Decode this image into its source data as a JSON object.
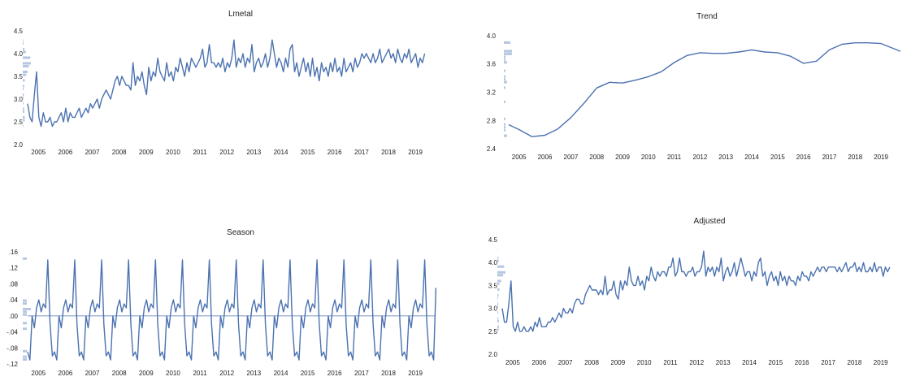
{
  "colors": {
    "series": "#4b72b0",
    "histogram": "#b5c6e0",
    "text": "#222222"
  },
  "chart_data": [
    {
      "id": "lmetal",
      "type": "line",
      "title": "Lmetal",
      "xlabel": "",
      "ylabel": "",
      "x_tick_labels": [
        "2005",
        "2006",
        "2007",
        "2008",
        "2009",
        "2010",
        "2011",
        "2012",
        "2013",
        "2014",
        "2015",
        "2016",
        "2017",
        "2018",
        "2019"
      ],
      "y_tick_labels": [
        "2.0",
        "2.5",
        "3.0",
        "3.5",
        "4.0",
        "4.5"
      ],
      "ylim": [
        2.0,
        4.5
      ],
      "xlim": [
        2004.6,
        2019.75
      ],
      "grid": false,
      "marginal_histogram": true,
      "series": [
        {
          "x_start": 2004.6,
          "x_step": 0.0833,
          "values": [
            2.9,
            2.6,
            2.5,
            3.1,
            3.6,
            2.6,
            2.4,
            2.7,
            2.5,
            2.5,
            2.6,
            2.4,
            2.5,
            2.5,
            2.6,
            2.7,
            2.5,
            2.8,
            2.5,
            2.7,
            2.6,
            2.6,
            2.7,
            2.8,
            2.6,
            2.7,
            2.8,
            2.7,
            2.9,
            2.8,
            2.9,
            3.0,
            2.8,
            3.0,
            3.1,
            3.2,
            3.1,
            3.0,
            3.2,
            3.4,
            3.5,
            3.3,
            3.5,
            3.4,
            3.3,
            3.3,
            3.2,
            3.8,
            3.3,
            3.5,
            3.4,
            3.6,
            3.3,
            3.1,
            3.7,
            3.4,
            3.6,
            3.5,
            3.9,
            3.6,
            3.5,
            3.4,
            3.8,
            3.5,
            3.6,
            3.4,
            3.7,
            3.6,
            3.9,
            3.7,
            3.5,
            3.8,
            3.6,
            3.9,
            3.8,
            3.7,
            3.8,
            3.9,
            4.1,
            3.7,
            3.8,
            4.2,
            3.8,
            3.8,
            3.7,
            3.8,
            3.7,
            3.9,
            3.6,
            3.8,
            3.7,
            3.9,
            4.3,
            3.7,
            3.9,
            3.8,
            4.0,
            3.7,
            3.9,
            3.8,
            4.2,
            3.6,
            3.8,
            3.9,
            3.7,
            3.8,
            4.0,
            3.7,
            3.9,
            4.3,
            4.0,
            3.7,
            3.9,
            3.8,
            3.6,
            3.9,
            3.7,
            4.1,
            4.2,
            3.6,
            3.8,
            3.5,
            3.7,
            3.9,
            3.6,
            3.8,
            3.5,
            3.9,
            3.5,
            3.7,
            3.4,
            3.8,
            3.6,
            3.7,
            3.5,
            3.8,
            3.6,
            3.9,
            3.6,
            3.7,
            3.5,
            3.9,
            3.6,
            3.7,
            3.8,
            3.6,
            3.9,
            3.7,
            3.8,
            4.0,
            3.9,
            4.0,
            3.9,
            3.8,
            4.0,
            3.8,
            3.9,
            4.1,
            3.8,
            3.9,
            4.0,
            4.1,
            3.9,
            4.0,
            3.8,
            4.1,
            3.9,
            3.8,
            4.0,
            3.9,
            4.1,
            3.8,
            3.9,
            4.0,
            3.7,
            3.9,
            3.8,
            4.0
          ]
        }
      ]
    },
    {
      "id": "trend",
      "type": "line",
      "title": "Trend",
      "xlabel": "",
      "ylabel": "",
      "x_tick_labels": [
        "2005",
        "2006",
        "2007",
        "2008",
        "2009",
        "2010",
        "2011",
        "2012",
        "2013",
        "2014",
        "2015",
        "2016",
        "2017",
        "2018",
        "2019"
      ],
      "y_tick_labels": [
        "2.4",
        "2.8",
        "3.2",
        "3.6",
        "4.0"
      ],
      "ylim": [
        2.4,
        4.0
      ],
      "xlim": [
        2004.6,
        2019.75
      ],
      "grid": false,
      "marginal_histogram": true,
      "series": [
        {
          "x": [
            2004.6,
            2005.0,
            2005.5,
            2006.0,
            2006.5,
            2007.0,
            2007.5,
            2008.0,
            2008.5,
            2009.0,
            2009.5,
            2010.0,
            2010.5,
            2011.0,
            2011.5,
            2012.0,
            2012.5,
            2013.0,
            2013.5,
            2014.0,
            2014.5,
            2015.0,
            2015.5,
            2016.0,
            2016.5,
            2017.0,
            2017.5,
            2018.0,
            2018.5,
            2019.0,
            2019.75
          ],
          "values": [
            2.74,
            2.67,
            2.57,
            2.59,
            2.68,
            2.84,
            3.04,
            3.26,
            3.34,
            3.33,
            3.37,
            3.42,
            3.49,
            3.62,
            3.72,
            3.76,
            3.75,
            3.75,
            3.77,
            3.8,
            3.77,
            3.76,
            3.71,
            3.61,
            3.64,
            3.8,
            3.88,
            3.9,
            3.9,
            3.89,
            3.78
          ]
        }
      ]
    },
    {
      "id": "season",
      "type": "line",
      "title": "Season",
      "xlabel": "",
      "ylabel": "",
      "x_tick_labels": [
        "2005",
        "2006",
        "2007",
        "2008",
        "2009",
        "2010",
        "2011",
        "2012",
        "2013",
        "2014",
        "2015",
        "2016",
        "2017",
        "2018",
        "2019"
      ],
      "y_tick_labels": [
        "-.12",
        "-.08",
        "-.04",
        ".00",
        ".04",
        ".08",
        ".12",
        ".16"
      ],
      "ylim": [
        -0.12,
        0.16
      ],
      "xlim": [
        2004.6,
        2019.75
      ],
      "grid": false,
      "zero_line": true,
      "marginal_histogram": true,
      "series": [
        {
          "x_start": 2004.6,
          "x_step": 0.0833,
          "pattern": [
            -0.09,
            -0.11,
            0.0,
            -0.03,
            0.02,
            0.04,
            0.01,
            0.03,
            0.02,
            0.14,
            -0.02,
            -0.1
          ],
          "last_value": 0.07
        }
      ]
    },
    {
      "id": "adjusted",
      "type": "line",
      "title": "Adjusted",
      "xlabel": "",
      "ylabel": "",
      "x_tick_labels": [
        "2005",
        "2006",
        "2007",
        "2008",
        "2009",
        "2010",
        "2011",
        "2012",
        "2013",
        "2014",
        "2015",
        "2016",
        "2017",
        "2018",
        "2019"
      ],
      "y_tick_labels": [
        "2.0",
        "2.5",
        "3.0",
        "3.5",
        "4.0",
        "4.5"
      ],
      "ylim": [
        2.0,
        4.5
      ],
      "xlim": [
        2004.6,
        2019.75
      ],
      "grid": false,
      "marginal_histogram": true,
      "series": [
        {
          "x_start": 2004.6,
          "x_step": 0.0833,
          "values": [
            3.0,
            2.7,
            2.7,
            3.1,
            3.6,
            2.6,
            2.5,
            2.7,
            2.5,
            2.5,
            2.6,
            2.5,
            2.5,
            2.6,
            2.5,
            2.7,
            2.6,
            2.8,
            2.6,
            2.6,
            2.6,
            2.7,
            2.7,
            2.8,
            2.7,
            2.8,
            2.9,
            2.8,
            3.0,
            2.9,
            2.9,
            3.0,
            2.9,
            3.1,
            3.2,
            3.2,
            3.1,
            3.1,
            3.3,
            3.4,
            3.5,
            3.4,
            3.4,
            3.4,
            3.3,
            3.4,
            3.3,
            3.7,
            3.3,
            3.4,
            3.4,
            3.6,
            3.3,
            3.2,
            3.6,
            3.4,
            3.6,
            3.5,
            3.9,
            3.6,
            3.5,
            3.5,
            3.7,
            3.5,
            3.6,
            3.4,
            3.7,
            3.6,
            3.9,
            3.7,
            3.6,
            3.8,
            3.7,
            3.8,
            3.8,
            3.7,
            3.9,
            3.9,
            4.1,
            3.7,
            3.8,
            4.1,
            3.8,
            3.8,
            3.7,
            3.8,
            3.8,
            3.9,
            3.7,
            3.8,
            3.8,
            3.9,
            4.25,
            3.7,
            3.9,
            3.8,
            3.9,
            3.7,
            3.9,
            3.8,
            4.1,
            3.6,
            3.8,
            3.9,
            3.7,
            3.8,
            4.0,
            3.7,
            3.9,
            4.1,
            3.9,
            3.7,
            3.8,
            3.8,
            3.6,
            3.8,
            3.7,
            4.0,
            4.1,
            3.7,
            3.8,
            3.5,
            3.7,
            3.8,
            3.6,
            3.7,
            3.5,
            3.8,
            3.6,
            3.7,
            3.5,
            3.7,
            3.6,
            3.6,
            3.5,
            3.7,
            3.6,
            3.8,
            3.7,
            3.7,
            3.6,
            3.8,
            3.7,
            3.8,
            3.9,
            3.8,
            3.9,
            3.9,
            3.8,
            3.9,
            3.9,
            3.9,
            3.9,
            3.8,
            3.9,
            3.8,
            3.9,
            4.0,
            3.8,
            3.9,
            3.9,
            4.0,
            3.8,
            3.9,
            3.8,
            4.0,
            3.8,
            3.8,
            3.9,
            3.8,
            4.0,
            3.8,
            3.9,
            3.9,
            3.7,
            3.9,
            3.8,
            3.9
          ]
        }
      ]
    }
  ]
}
